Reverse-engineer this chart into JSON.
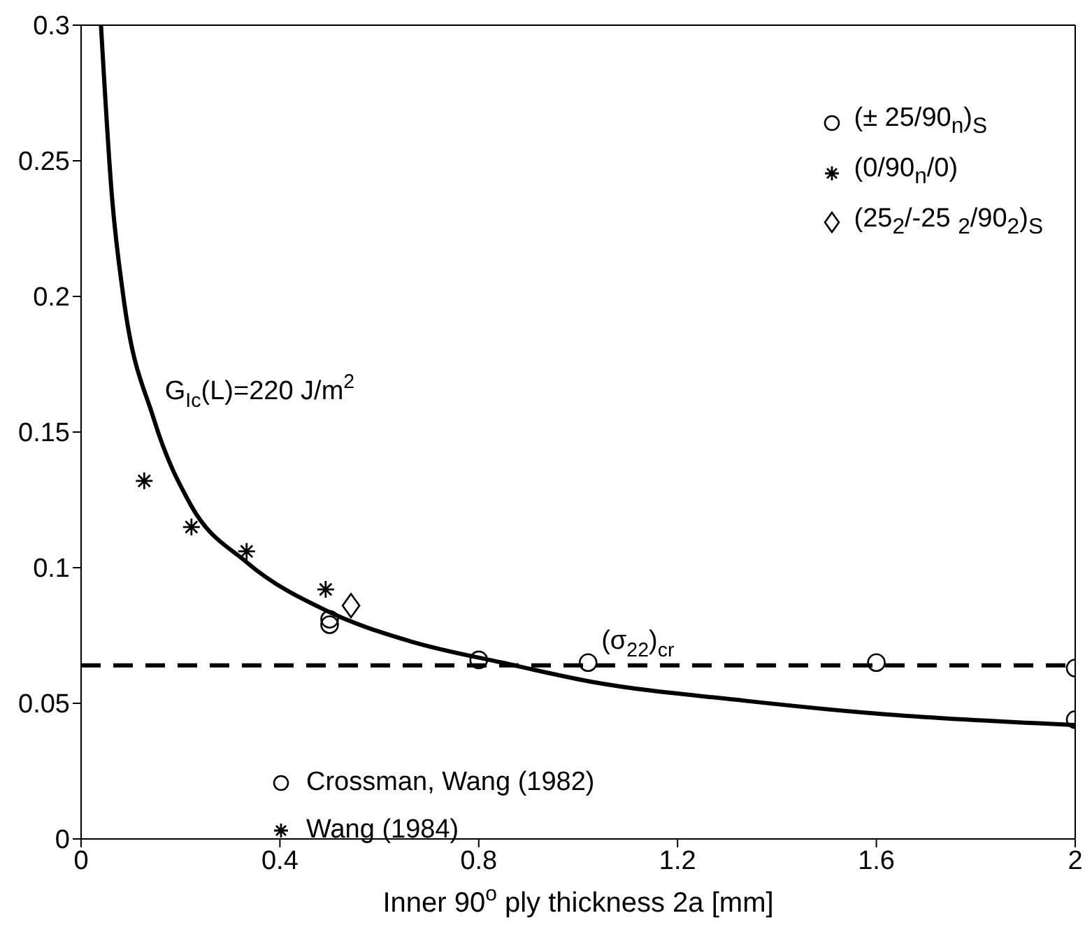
{
  "chart_data": {
    "type": "scatter",
    "xlabel": "Inner 90$^{o}$ ply thickness 2a [mm]",
    "xlim": [
      0,
      2
    ],
    "xticks": [
      0,
      0.4,
      0.8,
      1.2,
      1.6,
      2
    ],
    "ylim": [
      0,
      0.3
    ],
    "yticks": [
      0,
      0.05,
      0.1,
      0.15,
      0.2,
      0.25,
      0.3
    ],
    "grid": false,
    "legend": "top right",
    "series": [
      {
        "name": "(± 25/90$_{n}$)$_{S}$",
        "marker": "circle",
        "color": "#000000",
        "x": [
          0.5,
          0.5,
          0.8,
          1.02,
          1.6,
          2.0,
          2.0
        ],
        "values": [
          0.081,
          0.079,
          0.066,
          0.065,
          0.065,
          0.063,
          0.044
        ]
      },
      {
        "name": "(0/90$_{n}$/0)",
        "marker": "cross",
        "color": "#000000",
        "x": [
          0.127,
          0.222,
          0.333,
          0.492
        ],
        "values": [
          0.132,
          0.115,
          0.106,
          0.092
        ]
      },
      {
        "name": "(25$_{2}$/-25 $_{2}$/90$_{2}$)$_{S}$",
        "marker": "diamond",
        "color": "#000000",
        "x": [
          0.543
        ],
        "values": [
          0.086
        ]
      },
      {
        "name": "G$_{Ic}$(L)=220 J/m$^{2}$",
        "type": "line",
        "marker": "none",
        "line_style": "solid",
        "color": "#000000",
        "x": [
          0.04,
          0.062,
          0.085,
          0.146,
          0.221,
          0.333,
          0.501,
          0.66,
          0.847,
          1.025,
          1.333,
          1.614,
          2.0
        ],
        "values": [
          0.3,
          0.237,
          0.2,
          0.155,
          0.123,
          0.102,
          0.0835,
          0.073,
          0.065,
          0.058,
          0.051,
          0.046,
          0.042
        ]
      }
    ],
    "ref_lines": [
      {
        "axis": "y",
        "value": 0.064,
        "label": "(σ$_{22}$)$_{cr}$",
        "color": "#000000",
        "line_style": "dashed"
      }
    ],
    "annotations": [
      "Crossman, Wang (1982)",
      "Wang (1984)"
    ]
  }
}
